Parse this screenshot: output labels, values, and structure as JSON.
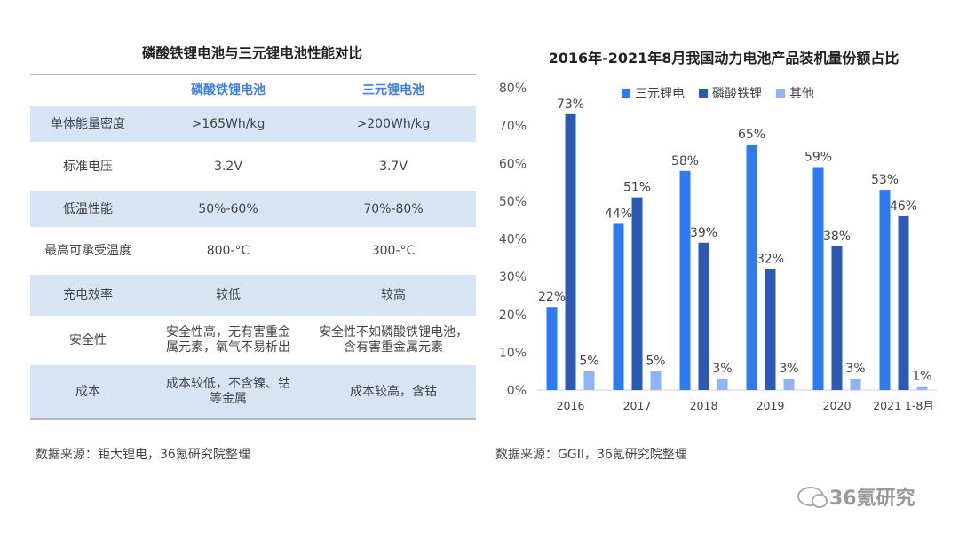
{
  "left_table": {
    "title": "磷酸铁锂电池与三元锂电池性能对比",
    "headers": [
      "",
      "磷酸铁锂电池",
      "三元锂电池"
    ],
    "rows": [
      [
        "单体能量密度",
        ">165Wh/kg",
        ">200Wh/kg"
      ],
      [
        "标准电压",
        "3.2V",
        "3.7V"
      ],
      [
        "低温性能",
        "50%-60%",
        "70%-80%"
      ],
      [
        "最高可承受温度",
        "800-°C",
        "300-°C"
      ],
      [
        "充电效率",
        "较低",
        "较高"
      ],
      [
        "安全性",
        "安全性高，无有害重金属元素，氧气不易析出",
        "安全性不如磷酸铁锂电池，含有害重金属元素"
      ],
      [
        "成本",
        "成本较低，不含镍、钴等金属",
        "成本较高，含钴"
      ]
    ],
    "row_split": {
      "5": [
        [
          "安全性高，无有害重金",
          "属元素，氧气不易析出"
        ],
        [
          "安全性不如磷酸铁锂电池，",
          "含有害重金属元素"
        ]
      ],
      "6": [
        [
          "成本较低，不含镍、钴",
          "等金属"
        ],
        [
          "成本较高，含钴"
        ]
      ]
    },
    "source": "数据来源：钜大锂电，36氪研究院整理"
  },
  "chart_data": {
    "type": "bar",
    "title": "2016年-2021年8月我国动力电池产品装机量份额占比",
    "categories": [
      "2016",
      "2017",
      "2018",
      "2019",
      "2020",
      "2021 1-8月"
    ],
    "series": [
      {
        "name": "三元锂电",
        "color": "#2e7bf0",
        "values": [
          22,
          44,
          58,
          65,
          59,
          53
        ]
      },
      {
        "name": "磷酸铁锂",
        "color": "#2c59b3",
        "values": [
          73,
          51,
          39,
          32,
          38,
          46
        ]
      },
      {
        "name": "其他",
        "color": "#8fb3f5",
        "values": [
          5,
          5,
          3,
          3,
          3,
          1
        ]
      }
    ],
    "ylim": [
      0,
      80
    ],
    "yticks": [
      "0%",
      "10%",
      "20%",
      "30%",
      "40%",
      "50%",
      "60%",
      "70%",
      "80%"
    ],
    "legend": "top",
    "grid": false,
    "source": "数据来源：GGII，36氪研究院整理"
  },
  "watermark": {
    "text": "36氪研究"
  }
}
